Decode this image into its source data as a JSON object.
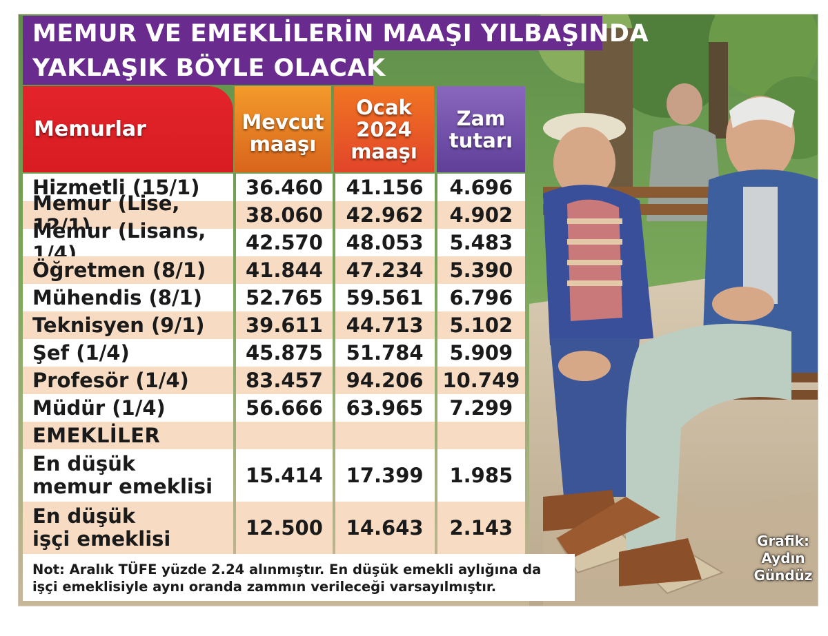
{
  "title": {
    "line1": "MEMUR VE EMEKLİLERİN MAAŞI YILBAŞINDA",
    "line2": "YAKLAŞIK BÖYLE OLACAK"
  },
  "colors": {
    "title_bg": "#6a2b8e",
    "header_red": "#e3242b",
    "header_orange": "#f39b2b",
    "header_orange_red": "#f07522",
    "header_purple": "#8a67bf",
    "row_beige": "#f7dcc3",
    "row_white": "#ffffff"
  },
  "chart_data": {
    "type": "table",
    "columns": [
      "Memurlar",
      "Mevcut maaşı",
      "Ocak 2024 maaşı",
      "Zam tutarı"
    ],
    "rows": [
      {
        "name": "Hizmetli (15/1)",
        "mevcut": "36.460",
        "ocak": "41.156",
        "zam": "4.696"
      },
      {
        "name": "Memur (Lise, 12/1)",
        "mevcut": "38.060",
        "ocak": "42.962",
        "zam": "4.902"
      },
      {
        "name": "Memur (Lisans, 1/4)",
        "mevcut": "42.570",
        "ocak": "48.053",
        "zam": "5.483"
      },
      {
        "name": "Öğretmen (8/1)",
        "mevcut": "41.844",
        "ocak": "47.234",
        "zam": "5.390"
      },
      {
        "name": "Mühendis (8/1)",
        "mevcut": "52.765",
        "ocak": "59.561",
        "zam": "6.796"
      },
      {
        "name": "Teknisyen (9/1)",
        "mevcut": "39.611",
        "ocak": "44.713",
        "zam": "5.102"
      },
      {
        "name": "Şef (1/4)",
        "mevcut": "45.875",
        "ocak": "51.784",
        "zam": "5.909"
      },
      {
        "name": "Profesör (1/4)",
        "mevcut": "83.457",
        "ocak": "94.206",
        "zam": "10.749"
      },
      {
        "name": "Müdür (1/4)",
        "mevcut": "56.666",
        "ocak": "63.965",
        "zam": "7.299"
      }
    ],
    "section": "EMEKLİLER",
    "retiree_rows": [
      {
        "name_line1": "En düşük",
        "name_line2": "memur emeklisi",
        "mevcut": "15.414",
        "ocak": "17.399",
        "zam": "1.985"
      },
      {
        "name_line1": "En düşük",
        "name_line2": "işçi emeklisi",
        "mevcut": "12.500",
        "ocak": "14.643",
        "zam": "2.143"
      }
    ]
  },
  "header": {
    "memurlar": "Memurlar",
    "mevcut_l1": "Mevcut",
    "mevcut_l2": "maaşı",
    "ocak_l1": "Ocak",
    "ocak_l2": "2024",
    "ocak_l3": "maaşı",
    "zam_l1": "Zam",
    "zam_l2": "tutarı"
  },
  "note": {
    "line1": "Not: Aralık TÜFE yüzde 2.24 alınmıştır. En düşük emekli aylığına da",
    "line2": "işçi emeklisiyle aynı oranda zammın verileceği varsayılmıştır."
  },
  "credit": {
    "line1": "Grafik:",
    "line2": "Aydın",
    "line3": "Gündüz"
  }
}
